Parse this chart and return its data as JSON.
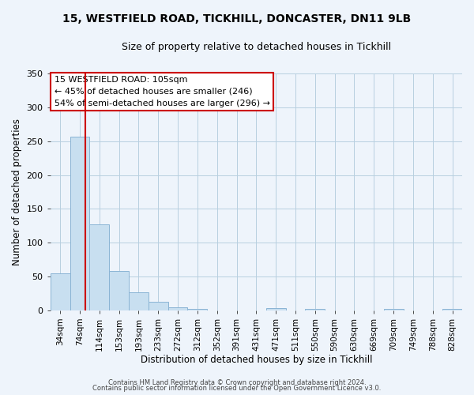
{
  "title_line1": "15, WESTFIELD ROAD, TICKHILL, DONCASTER, DN11 9LB",
  "title_line2": "Size of property relative to detached houses in Tickhill",
  "xlabel": "Distribution of detached houses by size in Tickhill",
  "ylabel": "Number of detached properties",
  "bin_labels": [
    "34sqm",
    "74sqm",
    "114sqm",
    "153sqm",
    "193sqm",
    "233sqm",
    "272sqm",
    "312sqm",
    "352sqm",
    "391sqm",
    "431sqm",
    "471sqm",
    "511sqm",
    "550sqm",
    "590sqm",
    "630sqm",
    "669sqm",
    "709sqm",
    "749sqm",
    "788sqm",
    "828sqm"
  ],
  "bar_heights": [
    55,
    257,
    127,
    58,
    27,
    13,
    5,
    2,
    0,
    0,
    0,
    3,
    0,
    2,
    0,
    0,
    0,
    2,
    0,
    0,
    2
  ],
  "bar_color": "#c8dff0",
  "bar_edge_color": "#8ab4d4",
  "vline_color": "#cc0000",
  "ylim": [
    0,
    350
  ],
  "yticks": [
    0,
    50,
    100,
    150,
    200,
    250,
    300,
    350
  ],
  "annotation_title": "15 WESTFIELD ROAD: 105sqm",
  "annotation_line1": "← 45% of detached houses are smaller (246)",
  "annotation_line2": "54% of semi-detached houses are larger (296) →",
  "annotation_box_color": "#ffffff",
  "annotation_box_edge_color": "#cc0000",
  "footer_line1": "Contains HM Land Registry data © Crown copyright and database right 2024.",
  "footer_line2": "Contains public sector information licensed under the Open Government Licence v3.0.",
  "background_color": "#eef4fb",
  "grid_color": "#b8cfe0",
  "title1_fontsize": 10,
  "title2_fontsize": 9,
  "annot_fontsize": 8,
  "axis_label_fontsize": 8.5,
  "tick_fontsize": 7.5,
  "footer_fontsize": 6
}
